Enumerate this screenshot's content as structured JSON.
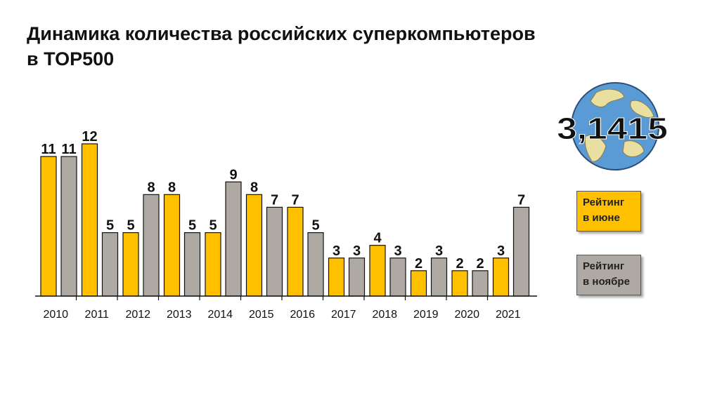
{
  "title": {
    "line1": "Динамика количества российских суперкомпьютеров",
    "line2": "в TOP500"
  },
  "logo": {
    "text": "3,1415",
    "globe_color": "#5b9bd5",
    "land_color": "#e8dfa0"
  },
  "colors": {
    "june": "#ffc000",
    "november": "#aeaaa3",
    "outline": "#111111"
  },
  "legend": [
    {
      "line1": "Рейтинг",
      "line2": "в июне",
      "color": "#ffc000"
    },
    {
      "line1": "Рейтинг",
      "line2": "в ноябре",
      "color": "#aeaaa3"
    }
  ],
  "chart_data": {
    "type": "bar",
    "title": "Динамика количества российских суперкомпьютеров в TOP500",
    "xlabel": "",
    "ylabel": "",
    "categories": [
      "2010",
      "2011",
      "2012",
      "2013",
      "2014",
      "2015",
      "2016",
      "2017",
      "2018",
      "2019",
      "2020",
      "2021"
    ],
    "series": [
      {
        "name": "Рейтинг в июне",
        "color": "#ffc000",
        "values": [
          11,
          12,
          5,
          8,
          5,
          8,
          7,
          3,
          4,
          2,
          2,
          3
        ]
      },
      {
        "name": "Рейтинг в ноябре",
        "color": "#aeaaa3",
        "values": [
          11,
          5,
          8,
          5,
          9,
          7,
          5,
          3,
          3,
          3,
          2,
          7
        ]
      }
    ],
    "ylim": [
      0,
      12
    ],
    "grid": false,
    "legend_position": "right"
  }
}
